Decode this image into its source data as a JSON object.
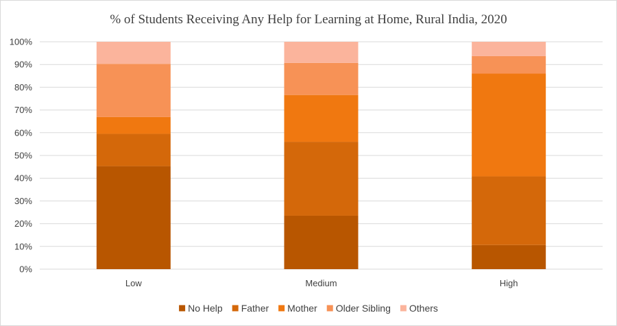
{
  "chart_data": {
    "type": "bar",
    "stacked": true,
    "percent_stacked": true,
    "title": "% of Students Receiving Any Help for Learning at Home, Rural India, 2020",
    "xlabel": "",
    "ylabel": "",
    "categories": [
      "Low",
      "Medium",
      "High"
    ],
    "y_ticks": [
      "0%",
      "10%",
      "20%",
      "30%",
      "40%",
      "50%",
      "60%",
      "70%",
      "80%",
      "90%",
      "100%"
    ],
    "ylim": [
      0,
      100
    ],
    "grid": true,
    "legend_position": "bottom",
    "series": [
      {
        "name": "No Help",
        "color": "#b85600",
        "values": [
          45.3,
          23.5,
          10.6
        ]
      },
      {
        "name": "Father",
        "color": "#d4680a",
        "values": [
          14.2,
          32.5,
          30.2
        ]
      },
      {
        "name": "Mother",
        "color": "#f07810",
        "values": [
          7.4,
          20.6,
          45.2
        ]
      },
      {
        "name": "Older Sibling",
        "color": "#f79256",
        "values": [
          23.4,
          14.1,
          7.7
        ]
      },
      {
        "name": "Others",
        "color": "#fbb49c",
        "values": [
          9.7,
          9.3,
          6.3
        ]
      }
    ]
  }
}
